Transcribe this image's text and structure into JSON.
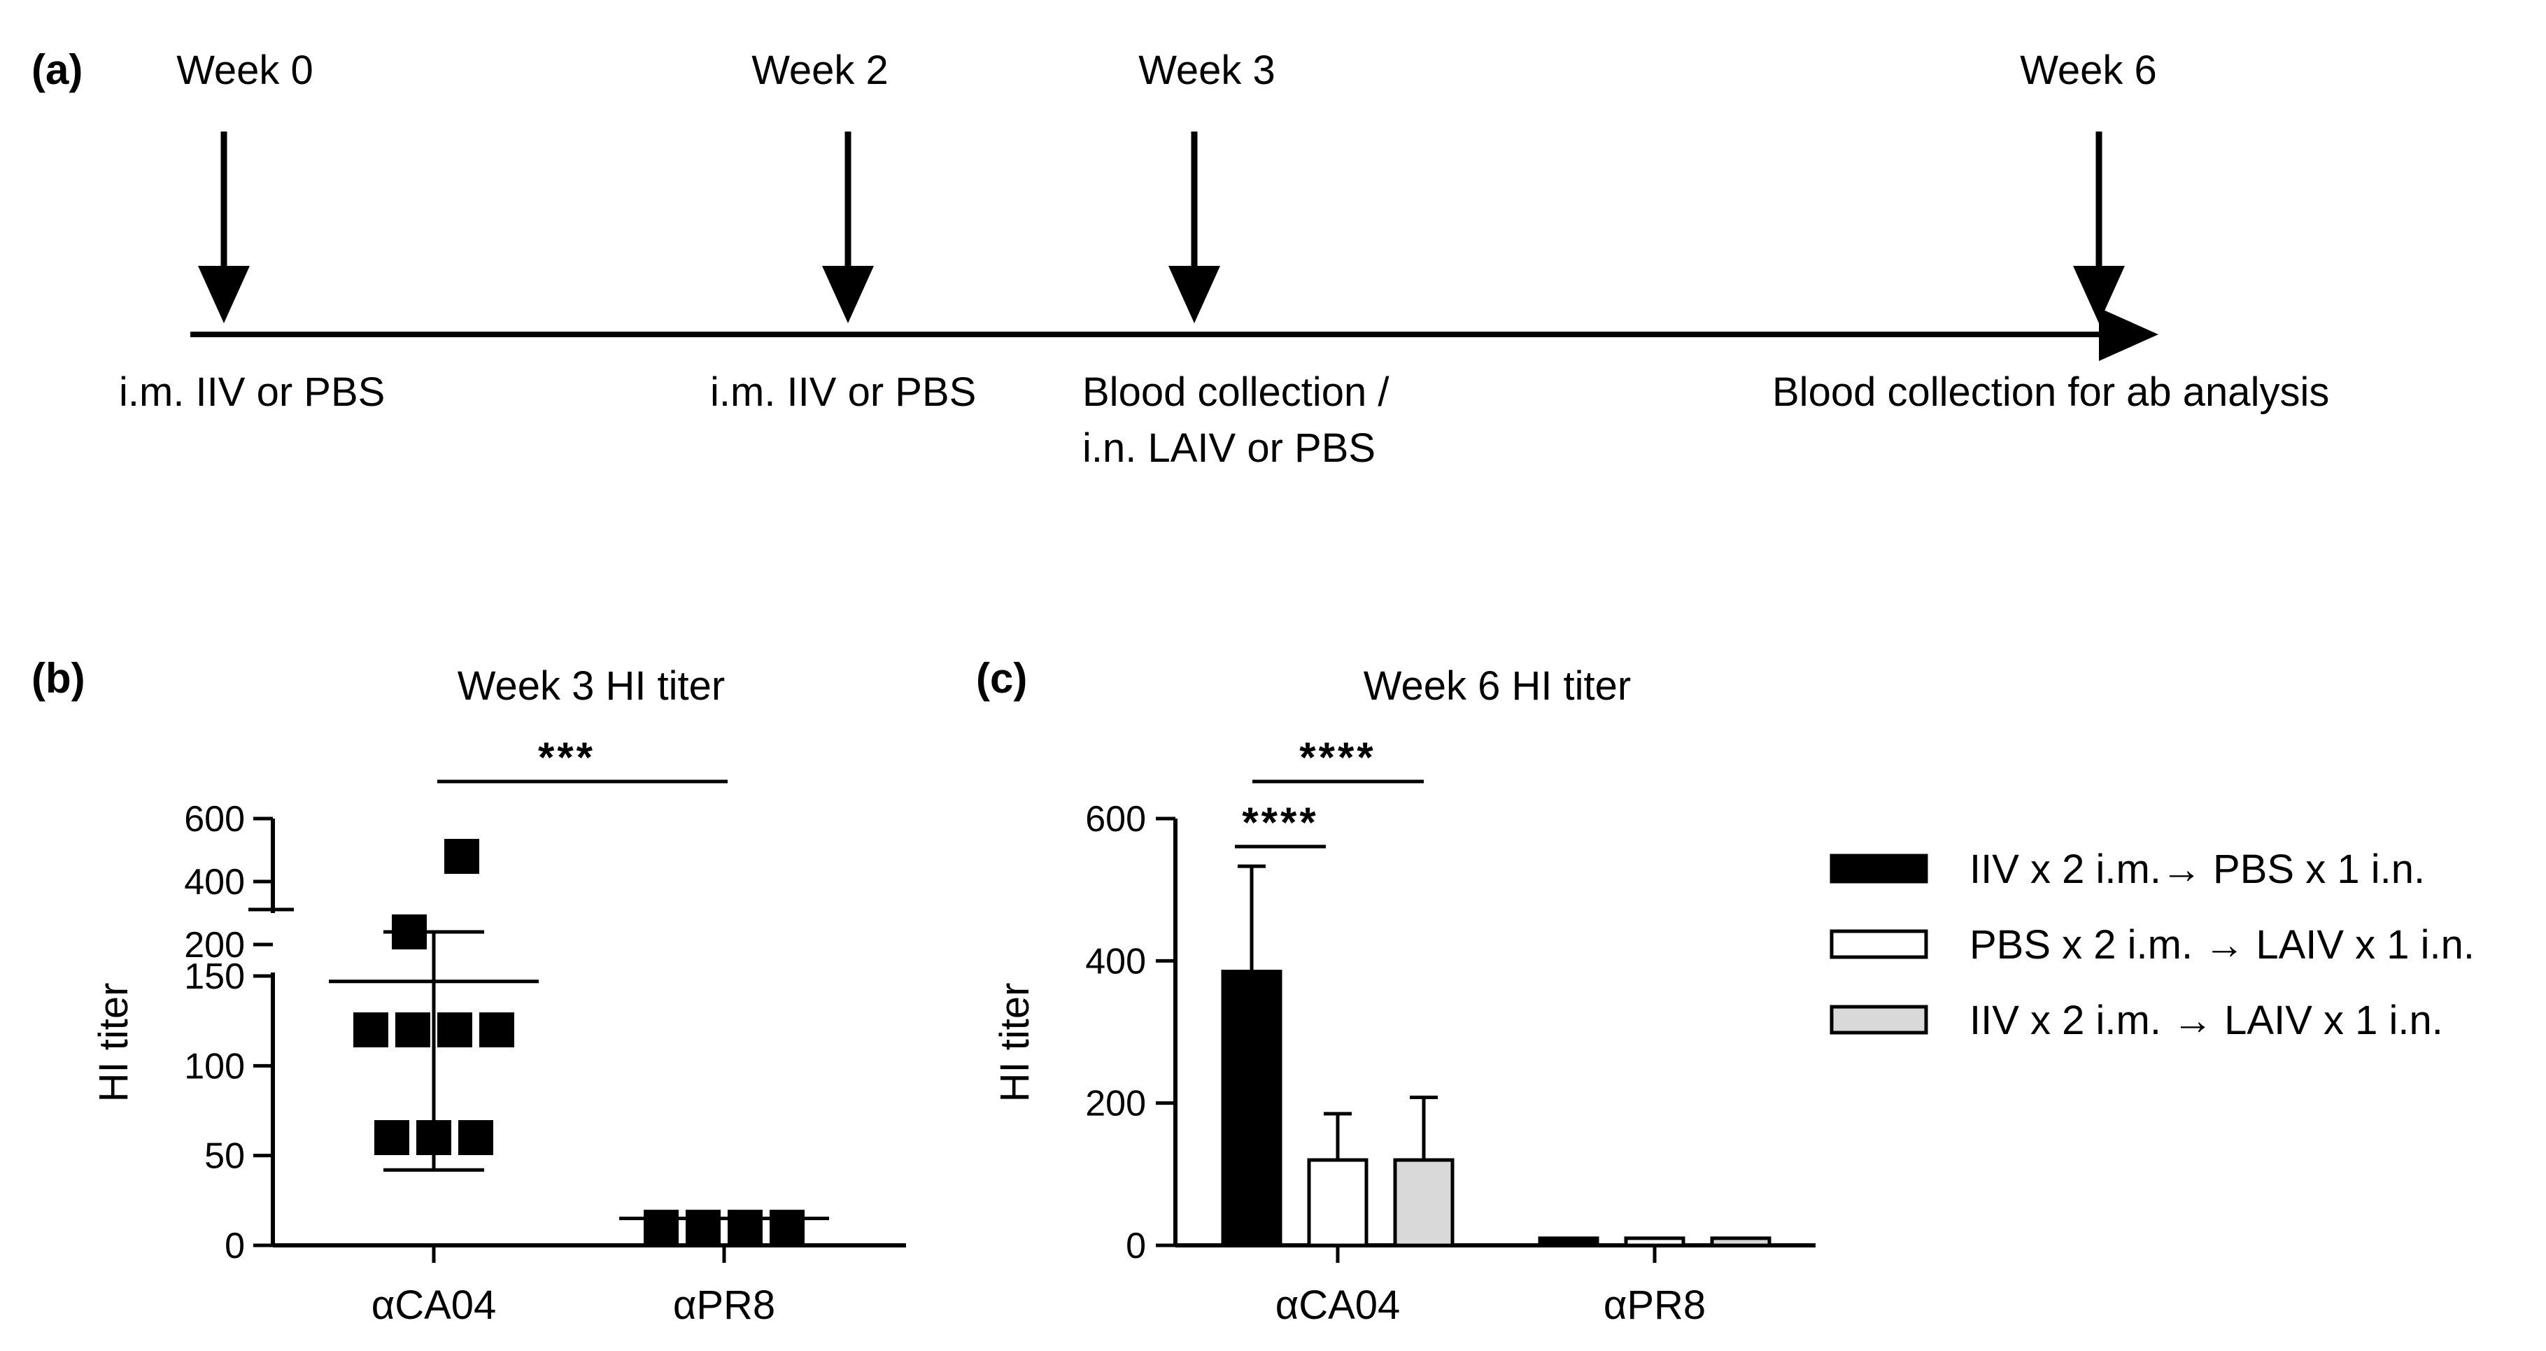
{
  "timeline": {
    "panel_label": "(a)",
    "events": [
      {
        "week": "Week 0",
        "text": "i.m. IIV or PBS",
        "text2": ""
      },
      {
        "week": "Week 2",
        "text": "i.m. IIV or PBS",
        "text2": ""
      },
      {
        "week": "Week 3",
        "text": "Blood collection /",
        "text2": "i.n. LAIV or PBS"
      },
      {
        "week": "Week 6",
        "text": "Blood collection for ab analysis",
        "text2": ""
      }
    ]
  },
  "chart_data": [
    {
      "panel_label": "(b)",
      "type": "scatter",
      "title": "Week 3 HI titer",
      "ylabel": "HI titer",
      "ylim": [
        0,
        150
      ],
      "y_break": {
        "lower_max": 150,
        "upper": [
          200,
          600
        ]
      },
      "y_ticks": [
        0,
        50,
        100,
        150
      ],
      "y_ticks_upper": [
        200,
        400,
        600
      ],
      "categories": [
        "αCA04",
        "αPR8"
      ],
      "points": [
        {
          "category": "αCA04",
          "values": [
            480,
            240,
            120,
            120,
            120,
            120,
            120,
            120,
            60,
            60,
            60
          ]
        },
        {
          "category": "αPR8",
          "values": [
            10,
            10,
            10,
            10,
            10,
            10,
            10,
            10,
            10,
            10,
            10,
            10
          ]
        }
      ],
      "mean": [
        147,
        15
      ],
      "sd_upper": [
        240,
        15
      ],
      "sd_lower": [
        42,
        15
      ],
      "significance": [
        {
          "between": [
            "αCA04",
            "αPR8"
          ],
          "label": "***"
        }
      ]
    },
    {
      "panel_label": "(c)",
      "type": "bar",
      "title": "Week 6 HI titer",
      "ylabel": "HI titer",
      "ylim": [
        0,
        600
      ],
      "y_ticks": [
        0,
        200,
        400,
        600
      ],
      "categories": [
        "αCA04",
        "αPR8"
      ],
      "series": [
        {
          "name": "IIV x 2 i.m.→ PBS x 1 i.n.",
          "color": "#000000",
          "values": [
            385,
            10
          ],
          "error": [
            148,
            0
          ]
        },
        {
          "name": "PBS x 2 i.m. → LAIV x 1 i.n.",
          "color": "#ffffff",
          "values": [
            120,
            10
          ],
          "error": [
            65,
            0
          ]
        },
        {
          "name": "IIV x 2 i.m. → LAIV x 1 i.n.",
          "color": "#d9d9d9",
          "values": [
            120,
            10
          ],
          "error": [
            88,
            0
          ]
        }
      ],
      "significance": [
        {
          "between": [
            "IIV x 2 i.m.→ PBS x 1 i.n.",
            "PBS x 2 i.m. → LAIV x 1 i.n."
          ],
          "label": "****"
        },
        {
          "between": [
            "IIV x 2 i.m.→ PBS x 1 i.n.",
            "IIV x 2 i.m. → LAIV x 1 i.n."
          ],
          "label": "****"
        }
      ]
    }
  ]
}
